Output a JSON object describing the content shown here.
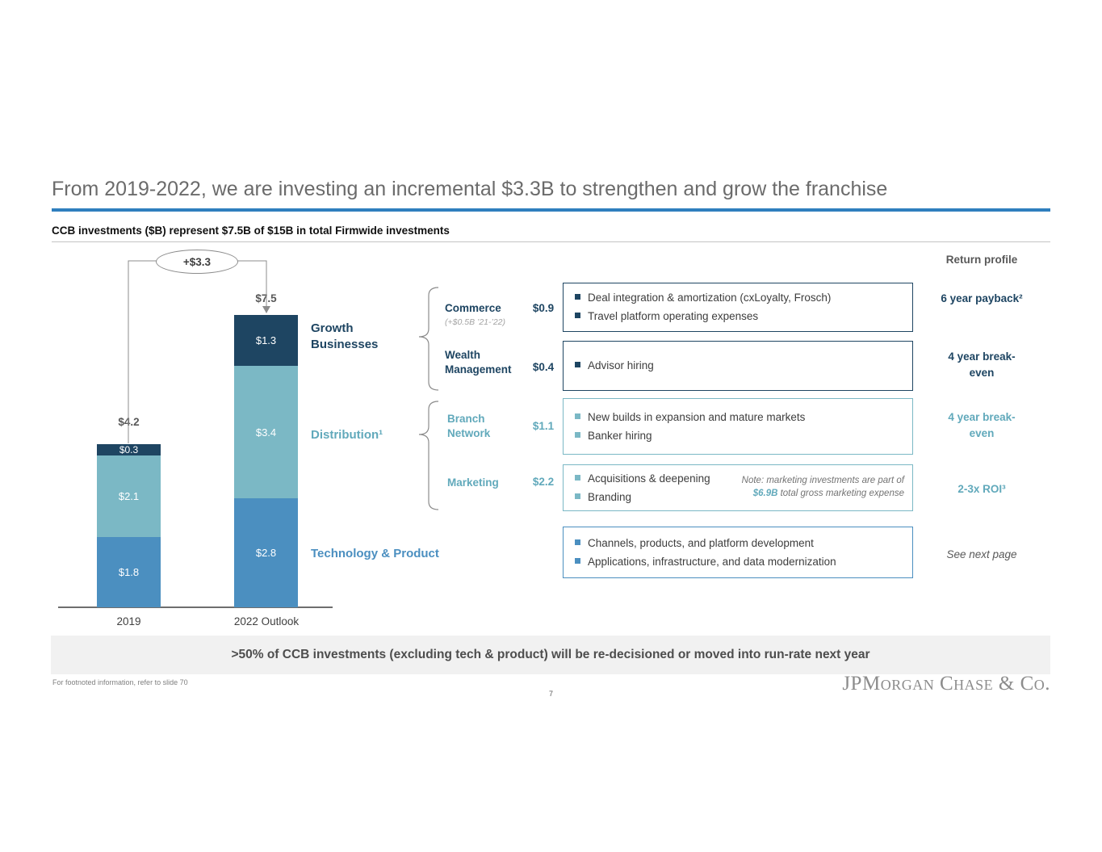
{
  "header": {
    "title": "From 2019-2022, we are investing an incremental $3.3B to strengthen and grow the franchise",
    "subtitle": "CCB investments ($B) represent $7.5B of $15B in total Firmwide investments",
    "return_profile": "Return profile"
  },
  "chart_data": {
    "type": "bar",
    "stacked": true,
    "unit": "$B",
    "title": "CCB investments ($B)",
    "categories": [
      "2019",
      "2022 Outlook"
    ],
    "series": [
      {
        "name": "Technology & Product",
        "color": "#4b8fc0",
        "values": [
          1.8,
          2.8
        ],
        "labels": [
          "$1.8",
          "$2.8"
        ]
      },
      {
        "name": "Distribution",
        "color": "#7bb8c5",
        "values": [
          2.1,
          3.4
        ],
        "labels": [
          "$2.1",
          "$3.4"
        ]
      },
      {
        "name": "Growth Businesses",
        "color": "#1e4562",
        "values": [
          0.3,
          1.3
        ],
        "labels": [
          "$0.3",
          "$1.3"
        ]
      }
    ],
    "totals": [
      "$4.2",
      "$7.5"
    ],
    "delta": "+$3.3",
    "ylim": [
      0,
      8
    ],
    "legend_position": "none",
    "grid": false
  },
  "groups": {
    "growth": "Growth Businesses",
    "distribution": "Distribution¹",
    "technology": "Technology & Product"
  },
  "rows": [
    {
      "name": "Commerce",
      "subnote": "(+$0.5B ’21-’22)",
      "amount": "$0.9",
      "bullets": [
        "Deal integration & amortization (cxLoyalty, Frosch)",
        "Travel platform operating expenses"
      ],
      "return": "6 year payback²"
    },
    {
      "name": "Wealth Management",
      "amount": "$0.4",
      "bullets": [
        "Advisor hiring"
      ],
      "return": "4 year break-even"
    },
    {
      "name": "Branch Network",
      "amount": "$1.1",
      "bullets": [
        "New builds in expansion and mature markets",
        "Banker hiring"
      ],
      "return": "4 year break-even"
    },
    {
      "name": "Marketing",
      "amount": "$2.2",
      "bullets": [
        "Acquisitions & deepening",
        "Branding"
      ],
      "note_prefix": "Note: marketing investments are part of ",
      "note_highlight": "$6.9B",
      "note_suffix": " total gross marketing expense",
      "return": "2-3x ROI³"
    },
    {
      "bullets": [
        "Channels, products, and platform development",
        "Applications, infrastructure, and data modernization"
      ],
      "return": "See next page"
    }
  ],
  "footer": {
    "banner": ">50% of CCB investments (excluding tech & product) will be re-decisioned or moved into run-rate next year",
    "footnote": "For footnoted information, refer to slide 70",
    "page_number": "7",
    "logo": "JPMorgan Chase & Co."
  }
}
